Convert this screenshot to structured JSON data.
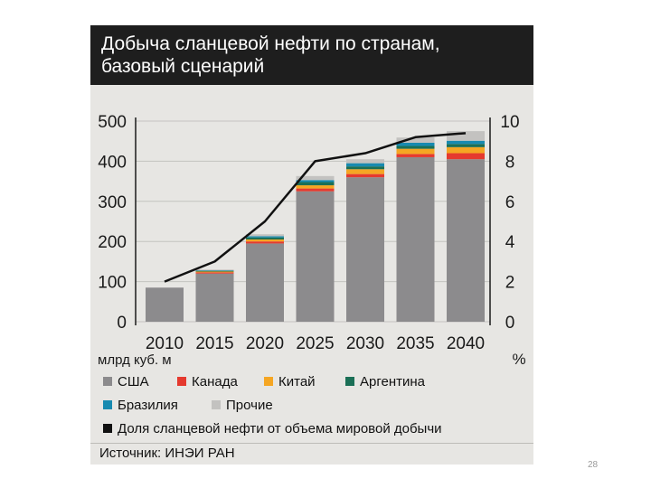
{
  "title_line1": "Добыча сланцевой нефти по странам,",
  "title_line2": "базовый сценарий",
  "page_number": "28",
  "source": "Источник: ИНЭИ РАН",
  "legend": {
    "usa": "США",
    "canada": "Канада",
    "china": "Китай",
    "argentina": "Аргентина",
    "brazil": "Бразилия",
    "other": "Прочие",
    "share": "Доля сланцевой нефти от объема мировой добычи"
  },
  "colors": {
    "usa": "#8c8b8d",
    "canada": "#e53a2f",
    "china": "#f5a623",
    "argentina": "#1b6f56",
    "brazil": "#178ab0",
    "other": "#c3c2c0",
    "line": "#111111"
  },
  "chart_data": {
    "type": "bar",
    "stacked": true,
    "categories": [
      "2010",
      "2015",
      "2020",
      "2025",
      "2030",
      "2035",
      "2040"
    ],
    "ylabel": "млрд куб. м",
    "y2label": "%",
    "ylim": [
      0,
      500
    ],
    "y_ticks": [
      "0",
      "100",
      "200",
      "300",
      "400",
      "500"
    ],
    "y2lim": [
      0,
      10
    ],
    "y2_ticks": [
      "0",
      "2",
      "4",
      "6",
      "8",
      "10"
    ],
    "series": [
      {
        "key": "usa",
        "name": "США",
        "values": [
          85,
          120,
          195,
          325,
          360,
          410,
          405
        ]
      },
      {
        "key": "canada",
        "name": "Канада",
        "values": [
          0,
          3,
          5,
          7,
          8,
          8,
          15
        ]
      },
      {
        "key": "china",
        "name": "Китай",
        "values": [
          0,
          2,
          5,
          8,
          12,
          13,
          15
        ]
      },
      {
        "key": "argentina",
        "name": "Аргентина",
        "values": [
          0,
          2,
          5,
          8,
          7,
          7,
          8
        ]
      },
      {
        "key": "brazil",
        "name": "Бразилия",
        "values": [
          0,
          1,
          3,
          5,
          8,
          8,
          8
        ]
      },
      {
        "key": "other",
        "name": "Прочие",
        "values": [
          0,
          2,
          5,
          10,
          10,
          13,
          24
        ]
      }
    ],
    "line": {
      "name": "Доля сланцевой нефти от объема мировой добычи",
      "values": [
        2.0,
        3.0,
        5.0,
        8.0,
        8.4,
        9.2,
        9.4
      ]
    }
  }
}
